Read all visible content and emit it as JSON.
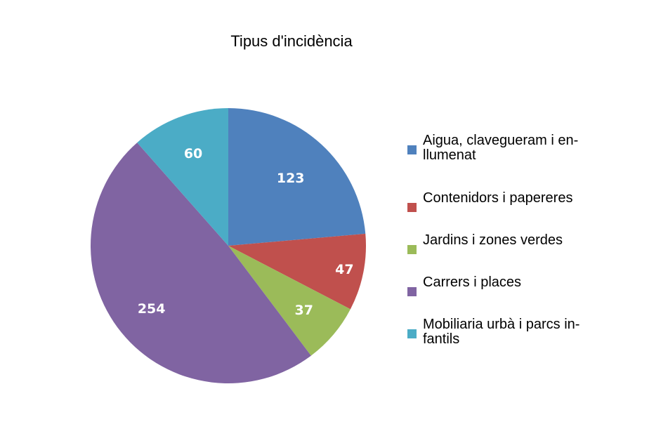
{
  "chart_data": {
    "type": "pie",
    "title": "Tipus d'incidència",
    "categories": [
      "Aigua, clavegueram i en-llumenat",
      "Contenidors i papereres",
      "Jardins i zones verdes",
      "Carrers i places",
      "Mobiliaria urbà  i parcs in-fantils"
    ],
    "legend_lines": [
      [
        "Aigua, clavegueram i en-",
        "llumenat"
      ],
      [
        "Contenidors i papereres"
      ],
      [
        "Jardins i zones verdes"
      ],
      [
        "Carrers i places"
      ],
      [
        "Mobiliaria urbà  i parcs in-",
        "fantils"
      ]
    ],
    "values": [
      123,
      47,
      37,
      254,
      60
    ],
    "colors": [
      "#4F81BD",
      "#C0504D",
      "#9BBB59",
      "#8064A2",
      "#4BACC6"
    ],
    "legend_position": "right",
    "start_angle": "top",
    "direction": "clockwise"
  }
}
